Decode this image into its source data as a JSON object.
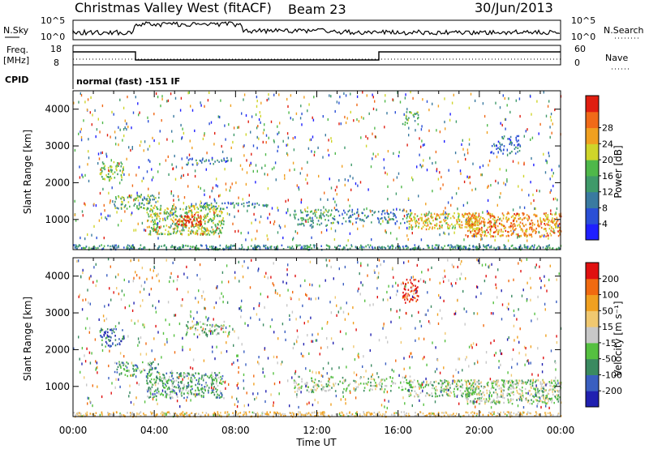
{
  "header": {
    "station": "Christmas Valley West (fitACF)",
    "beam": "Beam 23",
    "date": "30/Jun/2013"
  },
  "top_panels": {
    "nsky_label": "N.Sky",
    "nsky_ticks": [
      "10^5",
      "10^0"
    ],
    "nsearch_label": "N.Search",
    "nsearch_ticks": [
      "10^5",
      "10^0"
    ],
    "freq_label_line1": "Freq.",
    "freq_label_line2": "[MHz]",
    "freq_ticks": [
      "18",
      "8"
    ],
    "nave_label": "Nave",
    "nave_ticks": [
      "60",
      "0"
    ],
    "cpid_label": "CPID",
    "cpid_value": "normal (fast) -151 IF"
  },
  "chart_data": [
    {
      "type": "heatmap",
      "name": "power",
      "ylabel": "Slant Range [km]",
      "yticks": [
        "1000",
        "2000",
        "3000",
        "4000"
      ],
      "ylim": [
        180,
        4500
      ],
      "xlim_hours": [
        0,
        24
      ],
      "colorbar_label": "Power [dB]",
      "colorbar_ticks": [
        "4",
        "8",
        "12",
        "16",
        "20",
        "24",
        "28"
      ],
      "colorbar_colors": [
        "#1f1fff",
        "#2a4fd6",
        "#3a7aa0",
        "#3f9a6a",
        "#4fb84a",
        "#cfd52a",
        "#f0a020",
        "#f06a18",
        "#e01e10"
      ],
      "features": [
        {
          "t0": 0.0,
          "t1": 24.0,
          "r0": 200,
          "r1": 330,
          "level": 0.35,
          "dens": 0.85
        },
        {
          "t0": 3.6,
          "t1": 7.4,
          "r0": 600,
          "r1": 1400,
          "level": 0.55,
          "dens": 0.7
        },
        {
          "t0": 5.0,
          "t1": 6.3,
          "r0": 850,
          "r1": 1150,
          "level": 0.9,
          "dens": 0.9
        },
        {
          "t0": 2.0,
          "t1": 4.2,
          "r0": 1300,
          "r1": 1700,
          "level": 0.45,
          "dens": 0.55
        },
        {
          "t0": 1.3,
          "t1": 2.5,
          "r0": 2100,
          "r1": 2600,
          "level": 0.5,
          "dens": 0.55
        },
        {
          "t0": 6.0,
          "t1": 9.6,
          "r0": 1350,
          "r1": 1500,
          "level": 0.3,
          "dens": 0.45
        },
        {
          "t0": 10.8,
          "t1": 12.8,
          "r0": 850,
          "r1": 1300,
          "level": 0.4,
          "dens": 0.5
        },
        {
          "t0": 12.8,
          "t1": 16.6,
          "r0": 900,
          "r1": 1300,
          "level": 0.3,
          "dens": 0.35
        },
        {
          "t0": 16.5,
          "t1": 20.0,
          "r0": 750,
          "r1": 1200,
          "level": 0.65,
          "dens": 0.7
        },
        {
          "t0": 19.3,
          "t1": 24.0,
          "r0": 550,
          "r1": 1200,
          "level": 0.75,
          "dens": 0.75
        },
        {
          "t0": 16.2,
          "t1": 17.0,
          "r0": 3600,
          "r1": 3950,
          "level": 0.45,
          "dens": 0.5
        },
        {
          "t0": 20.5,
          "t1": 22.0,
          "r0": 2800,
          "r1": 3300,
          "level": 0.25,
          "dens": 0.4
        },
        {
          "t0": 5.5,
          "t1": 7.8,
          "r0": 2500,
          "r1": 2700,
          "level": 0.25,
          "dens": 0.4
        }
      ]
    },
    {
      "type": "heatmap",
      "name": "velocity",
      "ylabel": "Slant Range [km]",
      "yticks": [
        "1000",
        "2000",
        "3000",
        "4000"
      ],
      "ylim": [
        180,
        4500
      ],
      "xlim_hours": [
        0,
        24
      ],
      "xticks": [
        "00:00",
        "04:00",
        "08:00",
        "12:00",
        "16:00",
        "20:00",
        "00:00"
      ],
      "xlabel": "Time UT",
      "colorbar_label": "Velocity [m s⁻¹]",
      "colorbar_ticks": [
        "200",
        "100",
        "50",
        "15",
        "-15",
        "-50",
        "-100",
        "-200"
      ],
      "colorbar_colors": [
        "#2020b0",
        "#3a5fc0",
        "#3a8a60",
        "#55c040",
        "#c8c8c8",
        "#f0c870",
        "#f0a020",
        "#f06a10",
        "#e01010"
      ],
      "features": [
        {
          "t0": 0.0,
          "t1": 24.0,
          "r0": 200,
          "r1": 330,
          "level": 0.6,
          "dens": 0.85
        },
        {
          "t0": 3.6,
          "t1": 7.4,
          "r0": 700,
          "r1": 1400,
          "level": 0.35,
          "dens": 0.65
        },
        {
          "t0": 10.8,
          "t1": 12.8,
          "r0": 850,
          "r1": 1300,
          "level": 0.45,
          "dens": 0.45
        },
        {
          "t0": 12.8,
          "t1": 16.6,
          "r0": 900,
          "r1": 1300,
          "level": 0.45,
          "dens": 0.35
        },
        {
          "t0": 16.5,
          "t1": 20.0,
          "r0": 750,
          "r1": 1200,
          "level": 0.45,
          "dens": 0.7
        },
        {
          "t0": 19.3,
          "t1": 24.0,
          "r0": 550,
          "r1": 1200,
          "level": 0.45,
          "dens": 0.75
        },
        {
          "t0": 16.2,
          "t1": 17.0,
          "r0": 3300,
          "r1": 3950,
          "level": 0.95,
          "dens": 0.6
        },
        {
          "t0": 1.3,
          "t1": 2.5,
          "r0": 2100,
          "r1": 2600,
          "level": 0.2,
          "dens": 0.5
        },
        {
          "t0": 2.0,
          "t1": 4.2,
          "r0": 1300,
          "r1": 1700,
          "level": 0.3,
          "dens": 0.5
        },
        {
          "t0": 5.5,
          "t1": 7.8,
          "r0": 2400,
          "r1": 2800,
          "level": 0.4,
          "dens": 0.4
        }
      ]
    }
  ]
}
